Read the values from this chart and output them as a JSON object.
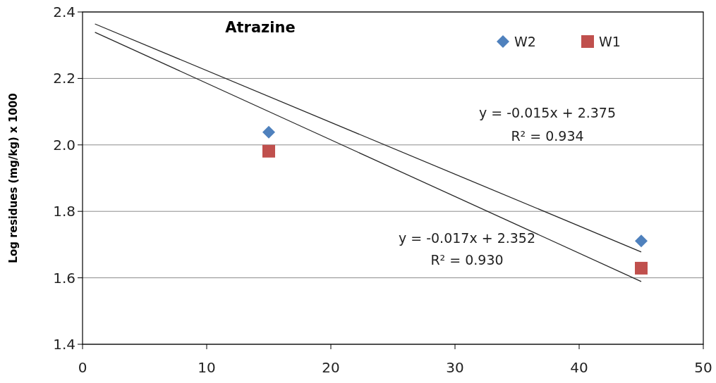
{
  "chart_data": {
    "type": "scatter",
    "title": "Atrazine",
    "ylabel": "Log residues (mg/kg) x 1000",
    "xlim": [
      0,
      50
    ],
    "xticks": [
      0,
      10,
      20,
      30,
      40,
      50
    ],
    "ylim": [
      1.4,
      2.4
    ],
    "yticks": [
      {
        "value": 1.4,
        "label": "1.4"
      },
      {
        "value": 1.6,
        "label": "1.6"
      },
      {
        "value": 1.8,
        "label": "1.8"
      },
      {
        "value": 2.0,
        "label": "2.0"
      },
      {
        "value": 2.2,
        "label": "2.2"
      },
      {
        "value": 2.4,
        "label": "2.4"
      }
    ],
    "grid": "y",
    "legend": "top right",
    "series": [
      {
        "name": "W2",
        "color": "#4f81bd",
        "marker": "diamond",
        "x": [
          15,
          45
        ],
        "values": [
          2.038,
          1.711
        ]
      },
      {
        "name": "W1",
        "color": "#c0504d",
        "marker": "square",
        "x": [
          15,
          45
        ],
        "values": [
          1.981,
          1.629
        ]
      },
      {
        "type": "line",
        "color": "#262626",
        "marker": "none",
        "x": [
          1,
          45
        ],
        "values": [
          2.364,
          1.678
        ]
      },
      {
        "type": "line",
        "color": "#262626",
        "marker": "none",
        "x": [
          1,
          45
        ],
        "values": [
          2.339,
          1.589
        ]
      }
    ],
    "annotations": [
      "y = -0.015x + 2.375",
      "R² = 0.934",
      "y = -0.017x + 2.352",
      "R² = 0.930"
    ]
  }
}
